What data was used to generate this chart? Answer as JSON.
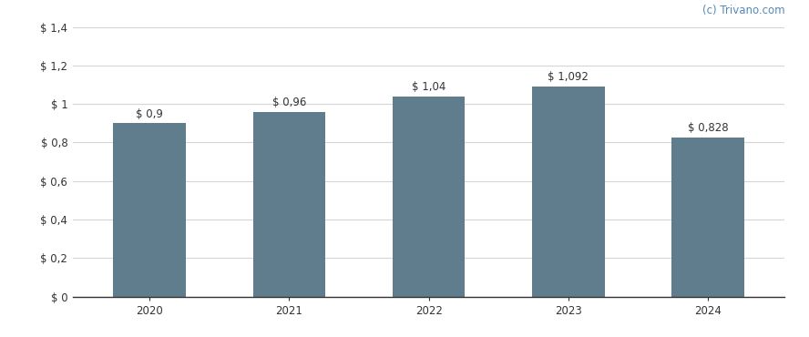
{
  "categories": [
    "2020",
    "2021",
    "2022",
    "2023",
    "2024"
  ],
  "values": [
    0.9,
    0.96,
    1.04,
    1.092,
    0.828
  ],
  "labels": [
    "$ 0,9",
    "$ 0,96",
    "$ 1,04",
    "$ 1,092",
    "$ 0,828"
  ],
  "bar_color": "#5f7d8c",
  "background_color": "#ffffff",
  "ylim": [
    0,
    1.4
  ],
  "yticks": [
    0,
    0.2,
    0.4,
    0.6,
    0.8,
    1.0,
    1.2,
    1.4
  ],
  "ytick_labels": [
    "$ 0",
    "$ 0,2",
    "$ 0,4",
    "$ 0,6",
    "$ 0,8",
    "$ 1",
    "$ 1,2",
    "$ 1,4"
  ],
  "grid_color": "#d5d5d5",
  "watermark": "(c) Trivano.com",
  "watermark_color": "#5588bb",
  "label_fontsize": 8.5,
  "tick_fontsize": 8.5,
  "watermark_fontsize": 8.5,
  "bar_width": 0.52
}
